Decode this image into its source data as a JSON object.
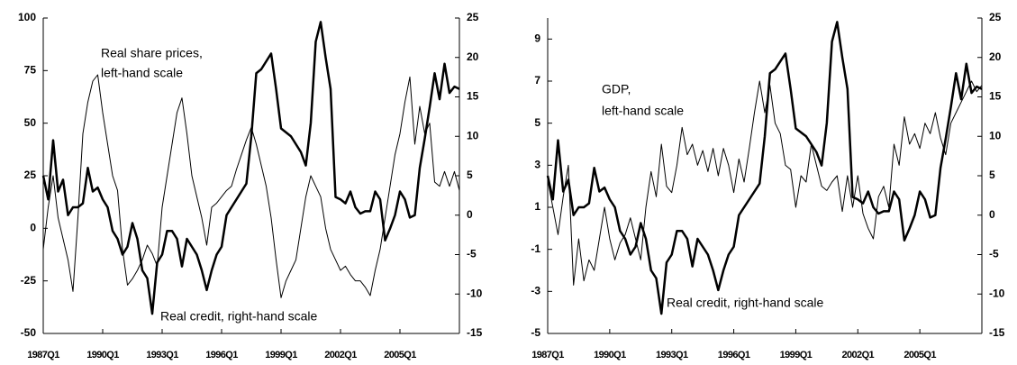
{
  "chart_data": [
    {
      "type": "line",
      "x": [
        1987,
        1987.25,
        1987.5,
        1987.75,
        1988,
        1988.25,
        1988.5,
        1988.75,
        1989,
        1989.25,
        1989.5,
        1989.75,
        1990,
        1990.25,
        1990.5,
        1990.75,
        1991,
        1991.25,
        1991.5,
        1991.75,
        1992,
        1992.25,
        1992.5,
        1992.75,
        1993,
        1993.25,
        1993.5,
        1993.75,
        1994,
        1994.25,
        1994.5,
        1994.75,
        1995,
        1995.25,
        1995.5,
        1995.75,
        1996,
        1996.25,
        1996.5,
        1996.75,
        1997,
        1997.25,
        1997.5,
        1997.75,
        1998,
        1998.25,
        1998.5,
        1998.75,
        1999,
        1999.25,
        1999.5,
        1999.75,
        2000,
        2000.25,
        2000.5,
        2000.75,
        2001,
        2001.25,
        2001.5,
        2001.75,
        2002,
        2002.25,
        2002.5,
        2002.75,
        2003,
        2003.25,
        2003.5,
        2003.75,
        2004,
        2004.25,
        2004.5,
        2004.75,
        2005,
        2005.25,
        2005.5,
        2005.75,
        2006,
        2006.25,
        2006.5,
        2006.75,
        2007,
        2007.25,
        2007.5,
        2007.75,
        2008
      ],
      "xlim": [
        1987,
        2008
      ],
      "xticks": [
        {
          "value": 1987,
          "label": "1987Q1"
        },
        {
          "value": 1990,
          "label": "1990Q1"
        },
        {
          "value": 1993,
          "label": "1993Q1"
        },
        {
          "value": 1996,
          "label": "1996Q1"
        },
        {
          "value": 1999,
          "label": "1999Q1"
        },
        {
          "value": 2002,
          "label": "2002Q1"
        },
        {
          "value": 2005,
          "label": "2005Q1"
        }
      ],
      "ylim": [
        -50,
        100
      ],
      "yticks": [
        -50,
        -25,
        0,
        25,
        50,
        75,
        100
      ],
      "y2lim": [
        -15,
        25
      ],
      "y2ticks": [
        -15,
        -10,
        -5,
        0,
        5,
        10,
        15,
        20,
        25
      ],
      "annotations": [
        "Real share prices,",
        "left-hand scale",
        "Real credit, right-hand scale"
      ],
      "series": [
        {
          "color": "#000000",
          "width": 1,
          "values": [
            -10,
            10,
            25,
            5,
            -5,
            -15,
            -30,
            5,
            45,
            60,
            70,
            73,
            55,
            40,
            25,
            18,
            -10,
            -27,
            -24,
            -20,
            -15,
            -8,
            -12,
            -18,
            10,
            25,
            40,
            55,
            62,
            45,
            25,
            15,
            5,
            -8,
            10,
            12,
            15,
            18,
            20,
            28,
            35,
            42,
            48,
            40,
            30,
            20,
            5,
            -15,
            -33,
            -25,
            -20,
            -15,
            0,
            15,
            25,
            20,
            15,
            0,
            -10,
            -15,
            -20,
            -18,
            -22,
            -25,
            -25,
            -28,
            -32,
            -20,
            -10,
            5,
            20,
            35,
            45,
            60,
            72,
            40,
            58,
            45,
            50,
            22,
            20,
            27,
            20,
            27,
            18
          ]
        },
        {
          "color": "#000000",
          "width": 2.5,
          "axis": "y2",
          "values": [
            5,
            2,
            9.5,
            3,
            4.5,
            0,
            1,
            1,
            1.5,
            6,
            3,
            3.5,
            2,
            1,
            -2,
            -3,
            -5,
            -4,
            -1,
            -3,
            -7,
            -8,
            -12.5,
            -6,
            -5,
            -2,
            -2,
            -3,
            -6.5,
            -3,
            -4,
            -5,
            -7,
            -9.5,
            -7,
            -5,
            -4,
            0,
            1,
            2,
            3,
            4,
            10,
            18,
            18.5,
            19.5,
            20.5,
            16,
            11,
            10.5,
            10,
            9,
            8,
            6.3,
            11.7,
            22,
            24.5,
            20,
            16,
            2.3,
            2,
            1.5,
            3,
            1,
            0.2,
            0.5,
            0.5,
            3,
            2,
            -3.2,
            -1.7,
            0,
            3,
            2,
            -0.3,
            0,
            6,
            9.7,
            13.7,
            18,
            14.7,
            19.2,
            15.5,
            16.3,
            16
          ]
        }
      ]
    },
    {
      "type": "line",
      "x": [
        1987,
        1987.25,
        1987.5,
        1987.75,
        1988,
        1988.25,
        1988.5,
        1988.75,
        1989,
        1989.25,
        1989.5,
        1989.75,
        1990,
        1990.25,
        1990.5,
        1990.75,
        1991,
        1991.25,
        1991.5,
        1991.75,
        1992,
        1992.25,
        1992.5,
        1992.75,
        1993,
        1993.25,
        1993.5,
        1993.75,
        1994,
        1994.25,
        1994.5,
        1994.75,
        1995,
        1995.25,
        1995.5,
        1995.75,
        1996,
        1996.25,
        1996.5,
        1996.75,
        1997,
        1997.25,
        1997.5,
        1997.75,
        1998,
        1998.25,
        1998.5,
        1998.75,
        1999,
        1999.25,
        1999.5,
        1999.75,
        2000,
        2000.25,
        2000.5,
        2000.75,
        2001,
        2001.25,
        2001.5,
        2001.75,
        2002,
        2002.25,
        2002.5,
        2002.75,
        2003,
        2003.25,
        2003.5,
        2003.75,
        2004,
        2004.25,
        2004.5,
        2004.75,
        2005,
        2005.25,
        2005.5,
        2005.75,
        2006,
        2006.25,
        2006.5,
        2006.75,
        2007,
        2007.25,
        2007.5,
        2007.75,
        2008
      ],
      "xlim": [
        1987,
        2008
      ],
      "xticks": [
        {
          "value": 1987,
          "label": "1987Q1"
        },
        {
          "value": 1990,
          "label": "1990Q1"
        },
        {
          "value": 1993,
          "label": "1993Q1"
        },
        {
          "value": 1996,
          "label": "1996Q1"
        },
        {
          "value": 1999,
          "label": "1999Q1"
        },
        {
          "value": 2002,
          "label": "2002Q1"
        },
        {
          "value": 2005,
          "label": "2005Q1"
        }
      ],
      "ylim": [
        -5,
        10
      ],
      "yticks": [
        -5,
        -3,
        -1,
        1,
        3,
        5,
        7,
        9
      ],
      "y2lim": [
        -15,
        25
      ],
      "y2ticks": [
        -15,
        -10,
        -5,
        0,
        5,
        10,
        15,
        20,
        25
      ],
      "annotations": [
        "GDP,",
        "left-hand scale",
        "Real credit, right-hand scale"
      ],
      "series": [
        {
          "color": "#000000",
          "width": 1,
          "values": [
            2.3,
            1,
            -0.3,
            1.5,
            3,
            -2.7,
            -0.5,
            -2.5,
            -1.5,
            -2,
            -0.5,
            1,
            -0.5,
            -1.5,
            -0.7,
            -0.3,
            0.5,
            -0.5,
            -1.5,
            1,
            2.7,
            1.5,
            4,
            2,
            1.7,
            3,
            4.8,
            3.5,
            4,
            3,
            3.7,
            2.7,
            3.8,
            2.5,
            3.8,
            3,
            1.7,
            3.3,
            2.2,
            3.8,
            5.5,
            7,
            5.5,
            6.8,
            5,
            4.5,
            3,
            2.8,
            1,
            2.5,
            2.2,
            4,
            3,
            2,
            1.8,
            2.2,
            2.5,
            0.8,
            2.5,
            1,
            2.5,
            0.7,
            0,
            -0.5,
            1.5,
            2,
            1,
            4,
            3,
            5.3,
            4,
            4.5,
            3.8,
            5,
            4.5,
            5.5,
            4.3,
            3.5,
            5,
            5.5,
            6,
            6.5,
            7,
            6.5,
            6.8
          ]
        },
        {
          "color": "#000000",
          "width": 2.5,
          "axis": "y2",
          "values": [
            5,
            2,
            9.5,
            3,
            4.5,
            0,
            1,
            1,
            1.5,
            6,
            3,
            3.5,
            2,
            1,
            -2,
            -3,
            -5,
            -4,
            -1,
            -3,
            -7,
            -8,
            -12.5,
            -6,
            -5,
            -2,
            -2,
            -3,
            -6.5,
            -3,
            -4,
            -5,
            -7,
            -9.5,
            -7,
            -5,
            -4,
            0,
            1,
            2,
            3,
            4,
            10,
            18,
            18.5,
            19.5,
            20.5,
            16,
            11,
            10.5,
            10,
            9,
            8,
            6.3,
            11.7,
            22,
            24.5,
            20,
            16,
            2.3,
            2,
            1.5,
            3,
            1,
            0.2,
            0.5,
            0.5,
            3,
            2,
            -3.2,
            -1.7,
            0,
            3,
            2,
            -0.3,
            0,
            6,
            9.7,
            13.7,
            18,
            14.7,
            19.2,
            15.5,
            16.3,
            16
          ]
        }
      ]
    }
  ]
}
